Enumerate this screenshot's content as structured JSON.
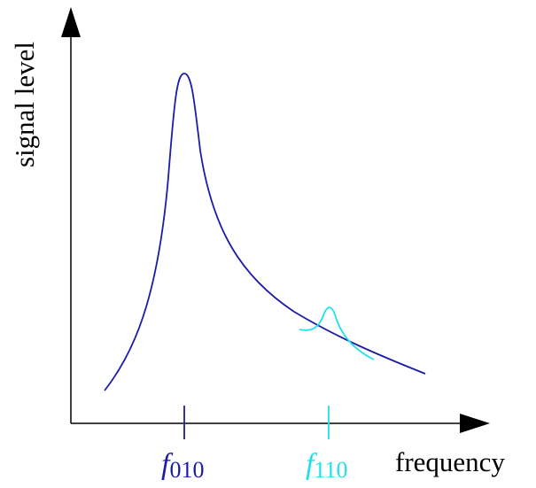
{
  "axes": {
    "y_label": "signal level",
    "x_label": "frequency"
  },
  "markers": [
    {
      "symbol": "f",
      "subscript": "010"
    },
    {
      "symbol": "f",
      "subscript": "110"
    }
  ]
}
